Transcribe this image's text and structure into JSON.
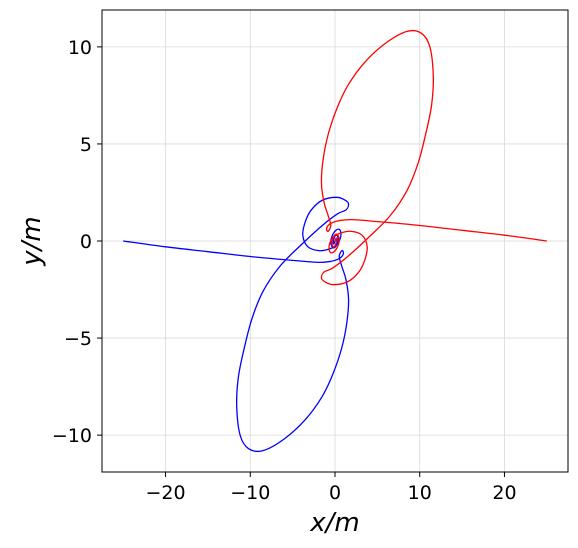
{
  "chart_data": {
    "type": "line",
    "title": "",
    "xlabel": "x/m",
    "ylabel": "y/m",
    "xlim": [
      -27.5,
      27.5
    ],
    "ylim": [
      -11.9,
      11.9
    ],
    "xticks": [
      -20,
      -10,
      0,
      10,
      20
    ],
    "yticks": [
      -10,
      -5,
      0,
      5,
      10
    ],
    "xtick_labels": [
      "−20",
      "−10",
      "0",
      "10",
      "20"
    ],
    "ytick_labels": [
      "−10",
      "−5",
      "0",
      "5",
      "10"
    ],
    "grid": true,
    "legend": false,
    "series": [
      {
        "color": "#0000ff",
        "x": [
          -25,
          -20,
          -15,
          -10,
          -5,
          -2,
          -0.5,
          0.3,
          0.8,
          1.0,
          0.8,
          0.5,
          0.8,
          1.3,
          1.6,
          1.4,
          0.8,
          -0.2,
          -1.5,
          -3.5,
          -6,
          -8.5,
          -10.2,
          -11.2,
          -11.6,
          -11.4,
          -10.7,
          -9.8,
          -8.5,
          -6.5,
          -4,
          -1.5,
          0.3,
          1.3,
          1.6,
          1.2,
          0.2,
          -1.5,
          -2.8,
          -3.5,
          -3.8,
          -3.2,
          -1.8,
          -0.6,
          0.2,
          0.6,
          0.7,
          0.5,
          0.1,
          -0.3,
          -0.5,
          -0.4,
          -0.1,
          0.2,
          0.35,
          0.3,
          0.1,
          -0.1,
          -0.2,
          -0.15,
          0
        ],
        "y": [
          0,
          -0.3,
          -0.55,
          -0.8,
          -1.0,
          -1.1,
          -1.05,
          -0.95,
          -0.8,
          -0.6,
          -0.5,
          -0.8,
          -1.3,
          -2.0,
          -3.0,
          -4.2,
          -5.5,
          -6.8,
          -8.0,
          -9.2,
          -10.2,
          -10.8,
          -10.7,
          -10.0,
          -8.5,
          -7.0,
          -5.5,
          -4.0,
          -2.6,
          -1.3,
          -0.2,
          0.8,
          1.4,
          1.6,
          1.9,
          2.1,
          2.25,
          2.1,
          1.6,
          1.0,
          0.3,
          -0.3,
          -0.5,
          -0.4,
          -0.2,
          0.1,
          0.4,
          0.6,
          0.55,
          0.3,
          0.0,
          -0.25,
          -0.35,
          -0.2,
          0.05,
          0.25,
          0.3,
          0.15,
          -0.05,
          -0.15,
          0
        ]
      },
      {
        "color": "#ff0000",
        "x": [
          25,
          20,
          15,
          10,
          5,
          2,
          0.5,
          -0.3,
          -0.8,
          -1.0,
          -0.8,
          -0.5,
          -0.8,
          -1.3,
          -1.6,
          -1.4,
          -0.8,
          0.2,
          1.5,
          3.5,
          6,
          8.5,
          10.2,
          11.2,
          11.6,
          11.4,
          10.7,
          9.8,
          8.5,
          6.5,
          4,
          1.5,
          -0.3,
          -1.3,
          -1.6,
          -1.2,
          -0.2,
          1.5,
          2.8,
          3.5,
          3.8,
          3.2,
          1.8,
          0.6,
          -0.2,
          -0.6,
          -0.7,
          -0.5,
          -0.1,
          0.3,
          0.5,
          0.4,
          0.1,
          -0.2,
          -0.35,
          -0.3,
          -0.1,
          0.1,
          0.2,
          0.15,
          0
        ],
        "y": [
          0,
          0.3,
          0.55,
          0.8,
          1.0,
          1.1,
          1.05,
          0.95,
          0.8,
          0.6,
          0.5,
          0.8,
          1.3,
          2.0,
          3.0,
          4.2,
          5.5,
          6.8,
          8.0,
          9.2,
          10.2,
          10.8,
          10.7,
          10.0,
          8.5,
          7.0,
          5.5,
          4.0,
          2.6,
          1.3,
          0.2,
          -0.8,
          -1.4,
          -1.6,
          -1.9,
          -2.1,
          -2.25,
          -2.1,
          -1.6,
          -1.0,
          -0.3,
          0.3,
          0.5,
          0.4,
          0.2,
          -0.1,
          -0.4,
          -0.6,
          -0.55,
          -0.3,
          0.0,
          0.25,
          0.35,
          0.2,
          -0.05,
          -0.25,
          -0.3,
          -0.15,
          0.05,
          0.15,
          0
        ]
      }
    ]
  }
}
